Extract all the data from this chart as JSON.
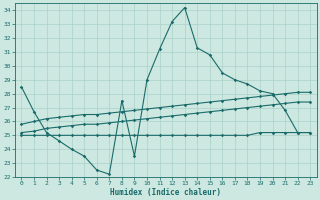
{
  "xlabel": "Humidex (Indice chaleur)",
  "xlim": [
    -0.5,
    23.5
  ],
  "ylim": [
    22,
    34.5
  ],
  "yticks": [
    22,
    23,
    24,
    25,
    26,
    27,
    28,
    29,
    30,
    31,
    32,
    33,
    34
  ],
  "xticks": [
    0,
    1,
    2,
    3,
    4,
    5,
    6,
    7,
    8,
    9,
    10,
    11,
    12,
    13,
    14,
    15,
    16,
    17,
    18,
    19,
    20,
    21,
    22,
    23
  ],
  "bg_color": "#cce8e0",
  "line_color": "#1a6b6b",
  "grid_color": "#aad0c8",
  "series": [
    {
      "x": [
        0,
        1,
        2,
        3,
        4,
        5,
        6,
        7,
        8,
        9,
        10,
        11,
        12,
        13,
        14,
        15,
        16,
        17,
        18,
        19,
        20,
        21,
        22,
        23
      ],
      "y": [
        28.5,
        26.7,
        25.2,
        24.6,
        24.0,
        23.5,
        22.5,
        22.2,
        27.5,
        23.5,
        29.0,
        31.2,
        33.2,
        34.2,
        31.3,
        30.8,
        29.5,
        29.0,
        28.7,
        28.2,
        28.0,
        26.8,
        25.2,
        25.2
      ]
    },
    {
      "x": [
        0,
        1,
        2,
        3,
        4,
        5,
        6,
        7,
        8,
        9,
        10,
        11,
        12,
        13,
        14,
        15,
        16,
        17,
        18,
        19,
        20,
        21,
        22,
        23
      ],
      "y": [
        25.8,
        26.0,
        26.2,
        26.3,
        26.4,
        26.5,
        26.5,
        26.6,
        26.7,
        26.8,
        26.9,
        27.0,
        27.1,
        27.2,
        27.3,
        27.4,
        27.5,
        27.6,
        27.7,
        27.8,
        27.9,
        28.0,
        28.1,
        28.1
      ]
    },
    {
      "x": [
        0,
        1,
        2,
        3,
        4,
        5,
        6,
        7,
        8,
        9,
        10,
        11,
        12,
        13,
        14,
        15,
        16,
        17,
        18,
        19,
        20,
        21,
        22,
        23
      ],
      "y": [
        25.2,
        25.3,
        25.5,
        25.6,
        25.7,
        25.8,
        25.8,
        25.9,
        26.0,
        26.1,
        26.2,
        26.3,
        26.4,
        26.5,
        26.6,
        26.7,
        26.8,
        26.9,
        27.0,
        27.1,
        27.2,
        27.3,
        27.4,
        27.4
      ]
    },
    {
      "x": [
        0,
        1,
        2,
        3,
        4,
        5,
        6,
        7,
        8,
        9,
        10,
        11,
        12,
        13,
        14,
        15,
        16,
        17,
        18,
        19,
        20,
        21,
        22,
        23
      ],
      "y": [
        25.0,
        25.0,
        25.0,
        25.0,
        25.0,
        25.0,
        25.0,
        25.0,
        25.0,
        25.0,
        25.0,
        25.0,
        25.0,
        25.0,
        25.0,
        25.0,
        25.0,
        25.0,
        25.0,
        25.2,
        25.2,
        25.2,
        25.2,
        25.2
      ]
    }
  ]
}
